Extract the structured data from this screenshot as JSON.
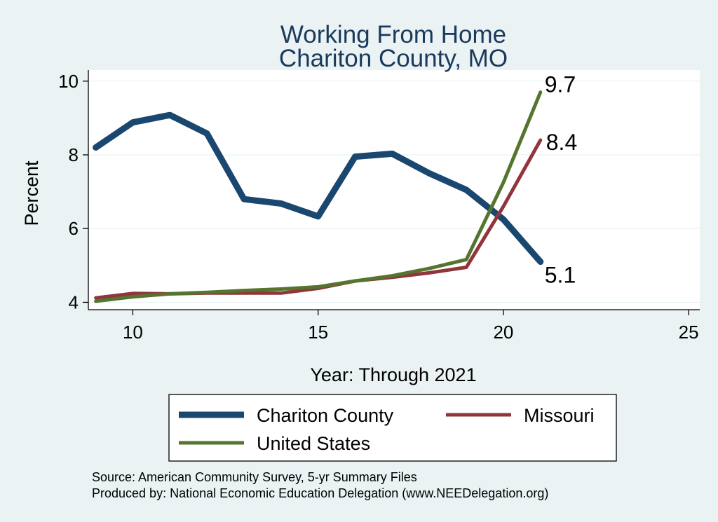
{
  "colors": {
    "background": "#eaf2f3",
    "plot_background": "#ffffff",
    "title": "#1a3a5c",
    "chariton": "#1a476f",
    "missouri": "#90353b",
    "united_states": "#55752f",
    "grid": "#eaf2f3"
  },
  "chart_data": {
    "type": "line",
    "title": [
      "Working From Home",
      "Chariton County, MO"
    ],
    "xlabel": "Year: Through 2021",
    "ylabel": "Percent",
    "xlim": [
      8.8,
      25.3
    ],
    "ylim": [
      3.8,
      10.3
    ],
    "xticks": [
      10,
      15,
      20,
      25
    ],
    "yticks": [
      4,
      6,
      8,
      10
    ],
    "grid": true,
    "legend_position": "bottom",
    "series": [
      {
        "name": "Chariton County",
        "color": "#1a476f",
        "x": [
          9,
          10,
          11,
          12,
          13,
          14,
          15,
          16,
          17,
          18,
          19,
          20,
          21
        ],
        "y": [
          8.2,
          8.88,
          9.08,
          8.58,
          6.8,
          6.68,
          6.33,
          7.95,
          8.03,
          7.5,
          7.05,
          6.25,
          5.1
        ],
        "end_label": "5.1"
      },
      {
        "name": "Missouri",
        "color": "#90353b",
        "x": [
          9,
          10,
          11,
          12,
          13,
          14,
          15,
          16,
          17,
          18,
          19,
          20,
          21
        ],
        "y": [
          4.12,
          4.24,
          4.23,
          4.25,
          4.25,
          4.25,
          4.38,
          4.58,
          4.68,
          4.8,
          4.95,
          6.6,
          8.4
        ],
        "end_label": "8.4"
      },
      {
        "name": "United States",
        "color": "#55752f",
        "x": [
          9,
          10,
          11,
          12,
          13,
          14,
          15,
          16,
          17,
          18,
          19,
          20,
          21
        ],
        "y": [
          4.03,
          4.15,
          4.23,
          4.27,
          4.32,
          4.36,
          4.42,
          4.58,
          4.72,
          4.92,
          5.16,
          7.25,
          9.7
        ],
        "end_label": "9.7"
      }
    ]
  },
  "notes": {
    "source": "Source: American Community Survey, 5-yr Summary Files",
    "produced": "Produced by: National Economic Education Delegation (www.NEEDelegation.org)"
  }
}
